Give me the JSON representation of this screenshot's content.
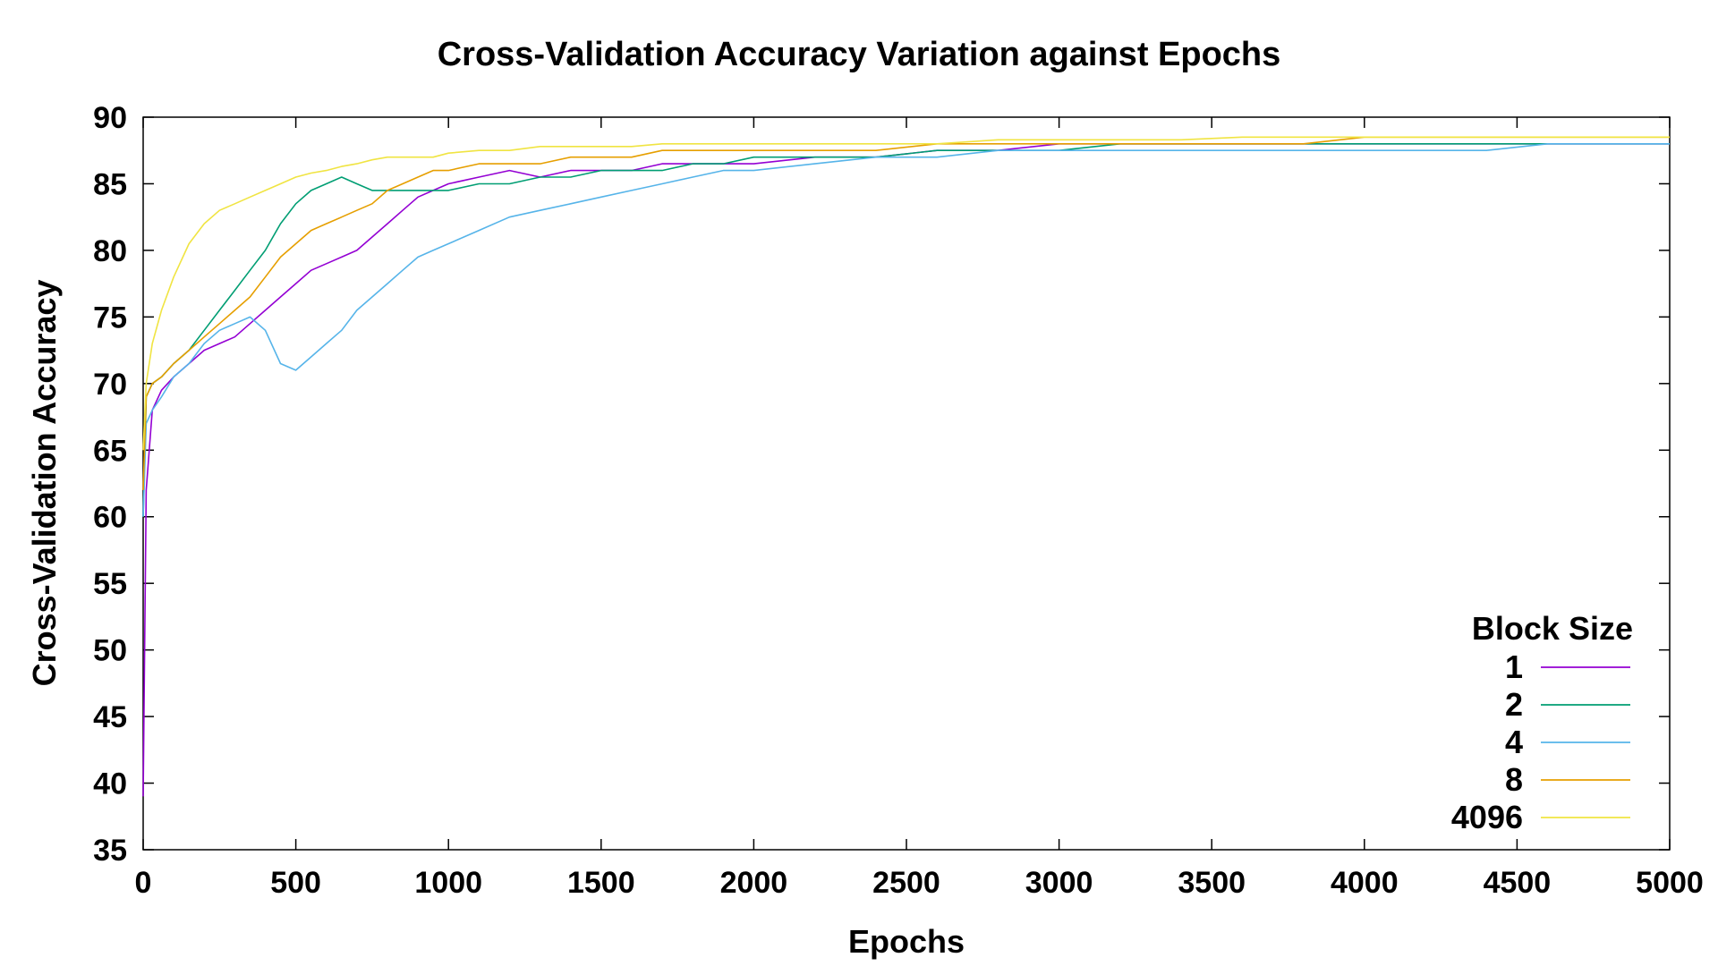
{
  "chart_data": {
    "type": "line",
    "title": "Cross-Validation Accuracy Variation against Epochs",
    "xlabel": "Epochs",
    "ylabel": "Cross-Validation Accuracy",
    "xlim": [
      0,
      5000
    ],
    "ylim": [
      35,
      90
    ],
    "xticks": [
      "0",
      "500",
      "1000",
      "1500",
      "2000",
      "2500",
      "3000",
      "3500",
      "4000",
      "4500",
      "5000"
    ],
    "yticks": [
      "35",
      "40",
      "45",
      "50",
      "55",
      "60",
      "65",
      "70",
      "75",
      "80",
      "85",
      "90"
    ],
    "grid": false,
    "legend": {
      "title": "Block Size",
      "placement": "bottom-right"
    },
    "series": [
      {
        "name": "1",
        "color": "#9400d3",
        "x": [
          0,
          10,
          30,
          60,
          100,
          150,
          200,
          250,
          300,
          350,
          400,
          450,
          500,
          550,
          600,
          650,
          700,
          750,
          800,
          850,
          900,
          950,
          1000,
          1100,
          1200,
          1300,
          1400,
          1500,
          1600,
          1700,
          1800,
          1900,
          2000,
          2200,
          2400,
          2600,
          2800,
          3000,
          3200,
          3400,
          3600,
          3800,
          4000,
          4200,
          4400,
          4600,
          4800,
          5000
        ],
        "y": [
          39,
          62,
          68,
          69.5,
          70.5,
          71.5,
          72.5,
          73,
          73.5,
          74.5,
          75.5,
          76.5,
          77.5,
          78.5,
          79,
          79.5,
          80,
          81,
          82,
          83,
          84,
          84.5,
          85,
          85.5,
          86,
          85.5,
          86,
          86,
          86,
          86.5,
          86.5,
          86.5,
          86.5,
          87,
          87,
          87.5,
          87.5,
          88,
          88,
          88,
          88,
          88,
          88,
          88,
          88,
          88,
          88,
          88
        ]
      },
      {
        "name": "2",
        "color": "#009e73",
        "x": [
          0,
          10,
          30,
          60,
          100,
          150,
          200,
          250,
          300,
          350,
          400,
          450,
          500,
          550,
          600,
          650,
          700,
          750,
          800,
          850,
          900,
          950,
          1000,
          1100,
          1200,
          1300,
          1400,
          1500,
          1600,
          1700,
          1800,
          1900,
          2000,
          2200,
          2400,
          2600,
          2800,
          3000,
          3200,
          3400,
          3600,
          3800,
          4000,
          4200,
          4400,
          4600,
          4800,
          5000
        ],
        "y": [
          60,
          69,
          70,
          70.5,
          71.5,
          72.5,
          74,
          75.5,
          77,
          78.5,
          80,
          82,
          83.5,
          84.5,
          85,
          85.5,
          85,
          84.5,
          84.5,
          84.5,
          84.5,
          84.5,
          84.5,
          85,
          85,
          85.5,
          85.5,
          86,
          86,
          86,
          86.5,
          86.5,
          87,
          87,
          87,
          87.5,
          87.5,
          87.5,
          88,
          88,
          88,
          88,
          88,
          88,
          88,
          88,
          88,
          88
        ]
      },
      {
        "name": "4",
        "color": "#56b4e9",
        "x": [
          0,
          10,
          30,
          60,
          100,
          150,
          200,
          250,
          300,
          350,
          400,
          450,
          500,
          550,
          600,
          650,
          700,
          750,
          800,
          850,
          900,
          950,
          1000,
          1100,
          1200,
          1300,
          1400,
          1500,
          1600,
          1700,
          1800,
          1900,
          2000,
          2200,
          2400,
          2600,
          2800,
          3000,
          3200,
          3400,
          3600,
          3800,
          4000,
          4200,
          4400,
          4600,
          4800,
          5000
        ],
        "y": [
          60,
          67,
          68,
          69,
          70.5,
          71.5,
          73,
          74,
          74.5,
          75,
          74,
          71.5,
          71,
          72,
          73,
          74,
          75.5,
          76.5,
          77.5,
          78.5,
          79.5,
          80,
          80.5,
          81.5,
          82.5,
          83,
          83.5,
          84,
          84.5,
          85,
          85.5,
          86,
          86,
          86.5,
          87,
          87,
          87.5,
          87.5,
          87.5,
          87.5,
          87.5,
          87.5,
          87.5,
          87.5,
          87.5,
          88,
          88,
          88
        ]
      },
      {
        "name": "8",
        "color": "#e69f00",
        "x": [
          0,
          10,
          30,
          60,
          100,
          150,
          200,
          250,
          300,
          350,
          400,
          450,
          500,
          550,
          600,
          650,
          700,
          750,
          800,
          850,
          900,
          950,
          1000,
          1100,
          1200,
          1300,
          1400,
          1500,
          1600,
          1700,
          1800,
          1900,
          2000,
          2200,
          2400,
          2600,
          2800,
          3000,
          3200,
          3400,
          3600,
          3800,
          4000,
          4200,
          4400,
          4600,
          4800,
          5000
        ],
        "y": [
          62,
          69,
          70,
          70.5,
          71.5,
          72.5,
          73.5,
          74.5,
          75.5,
          76.5,
          78,
          79.5,
          80.5,
          81.5,
          82,
          82.5,
          83,
          83.5,
          84.5,
          85,
          85.5,
          86,
          86,
          86.5,
          86.5,
          86.5,
          87,
          87,
          87,
          87.5,
          87.5,
          87.5,
          87.5,
          87.5,
          87.5,
          88,
          88,
          88,
          88,
          88,
          88,
          88,
          88.5,
          88.5,
          88.5,
          88.5,
          88.5,
          88.5
        ]
      },
      {
        "name": "4096",
        "color": "#f0e442",
        "x": [
          0,
          10,
          30,
          60,
          100,
          150,
          200,
          250,
          300,
          350,
          400,
          450,
          500,
          550,
          600,
          650,
          700,
          750,
          800,
          850,
          900,
          950,
          1000,
          1100,
          1200,
          1300,
          1400,
          1500,
          1600,
          1700,
          1800,
          1900,
          2000,
          2200,
          2400,
          2600,
          2800,
          3000,
          3200,
          3400,
          3600,
          3800,
          4000,
          4200,
          4400,
          4600,
          4800,
          5000
        ],
        "y": [
          65,
          70,
          73,
          75.5,
          78,
          80.5,
          82,
          83,
          83.5,
          84,
          84.5,
          85,
          85.5,
          85.8,
          86,
          86.3,
          86.5,
          86.8,
          87,
          87,
          87,
          87,
          87.3,
          87.5,
          87.5,
          87.8,
          87.8,
          87.8,
          87.8,
          88,
          88,
          88,
          88,
          88,
          88,
          88,
          88.3,
          88.3,
          88.3,
          88.3,
          88.5,
          88.5,
          88.5,
          88.5,
          88.5,
          88.5,
          88.5,
          88.5
        ]
      }
    ]
  }
}
